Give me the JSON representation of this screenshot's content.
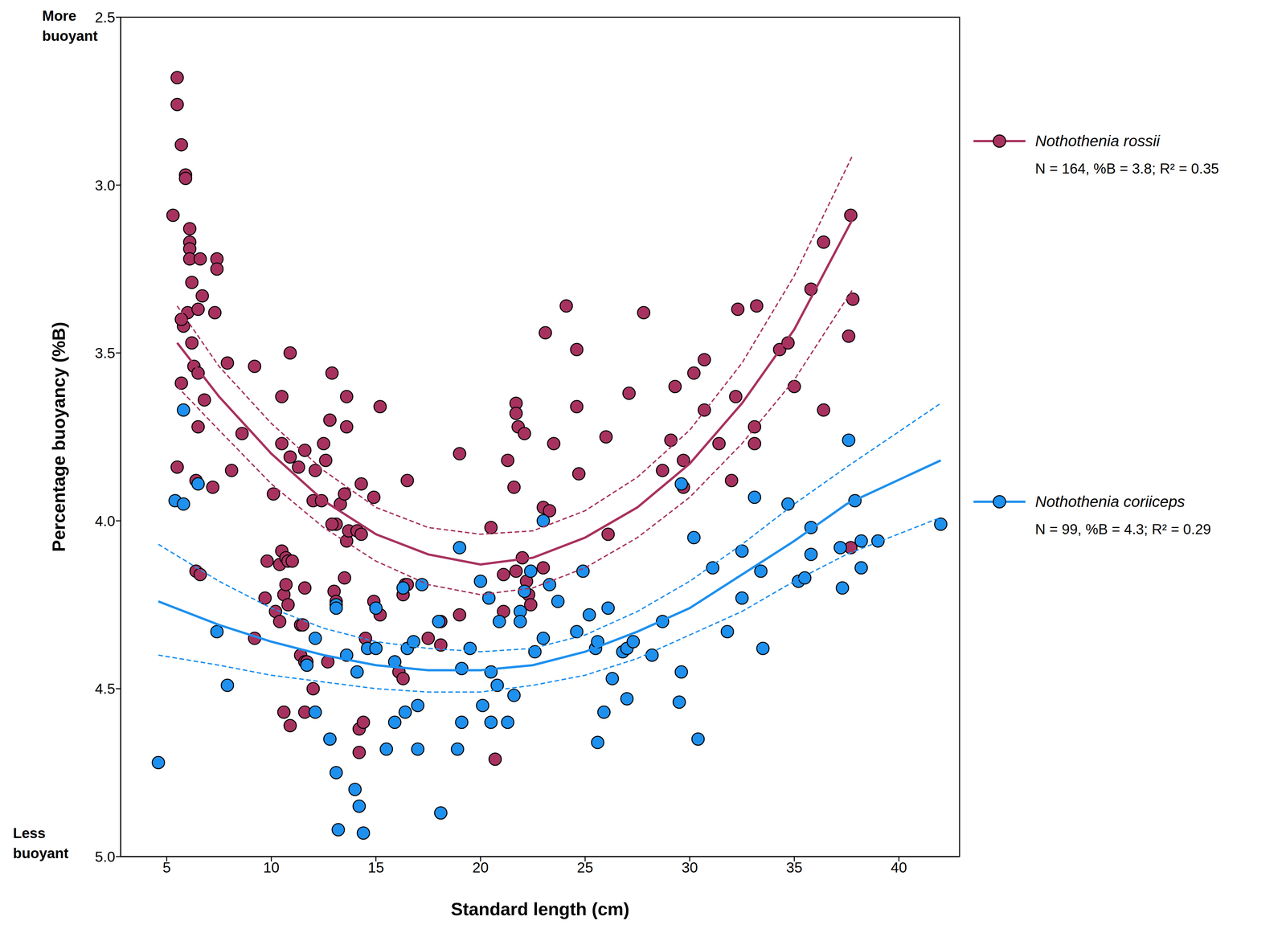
{
  "chart_data": {
    "type": "scatter",
    "x_label": "Standard length (cm)",
    "y_label": "Percentage buoyancy (%B)",
    "annotations": [
      "More buoyant",
      "Less buoyant"
    ],
    "legend": "right",
    "xlim": [
      2.8,
      42.9
    ],
    "xticks": [
      5,
      10,
      15,
      20,
      25,
      30,
      35,
      40
    ],
    "ylim": [
      2.5,
      5.0
    ],
    "yticks": [
      2.5,
      {
        "value": 3,
        "label": "3.0"
      },
      3.5,
      {
        "value": 4,
        "label": "4.0"
      },
      4.5,
      {
        "value": 5,
        "label": "5.0"
      }
    ],
    "series": [
      {
        "name": "Nothothenia rossii",
        "label": "N = 164, %B = 3.8; R² = 0.35",
        "color": "#a8325f",
        "marker": "circle",
        "x": [
          5.5,
          5.5,
          5.7,
          5.9,
          5.9,
          5.3,
          6.1,
          6.1,
          6.1,
          6.1,
          6.2,
          6.0,
          5.8,
          5.7,
          6.2,
          6.3,
          5.7,
          6.5,
          6.6,
          6.7,
          6.5,
          7.4,
          7.4,
          7.3,
          6.8,
          6.5,
          5.5,
          6.4,
          7.2,
          6.4,
          6.6,
          7.9,
          9.2,
          8.1,
          8.6,
          9.2,
          9.8,
          9.7,
          10.1,
          10.5,
          10.9,
          10.5,
          10.9,
          11.3,
          11.6,
          12.1,
          12.5,
          12.0,
          12.4,
          12.6,
          12.9,
          12.8,
          13.6,
          13.6,
          13.1,
          12.9,
          13.3,
          13.5,
          13.5,
          13.6,
          13.7,
          14.1,
          14.3,
          14.3,
          14.9,
          15.2,
          13.0,
          13.1,
          10.4,
          10.5,
          10.7,
          10.8,
          11.0,
          10.2,
          10.4,
          10.6,
          10.7,
          10.8,
          11.4,
          11.5,
          11.6,
          11.4,
          11.6,
          11.7,
          12.0,
          10.6,
          10.9,
          11.6,
          12.7,
          14.5,
          14.9,
          15.2,
          14.2,
          14.2,
          14.4,
          16.1,
          16.3,
          16.3,
          16.4,
          16.5,
          17.5,
          18.1,
          18.1,
          19.0,
          19.0,
          16.5,
          20.5,
          20.7,
          21.1,
          21.1,
          21.3,
          21.6,
          21.7,
          21.7,
          21.8,
          22.1,
          21.7,
          22.0,
          22.2,
          22.3,
          22.4,
          23.0,
          23.1,
          23.0,
          23.3,
          23.5,
          24.1,
          24.6,
          24.6,
          24.7,
          26.0,
          26.1,
          27.1,
          27.8,
          28.7,
          29.1,
          29.3,
          29.7,
          29.7,
          30.2,
          30.7,
          30.7,
          31.4,
          32.0,
          32.2,
          32.3,
          33.1,
          33.1,
          33.2,
          34.3,
          34.7,
          35.0,
          35.8,
          36.4,
          36.4,
          37.6,
          37.7,
          37.8,
          37.7
        ],
        "values": [
          2.68,
          2.76,
          2.88,
          2.97,
          2.98,
          3.09,
          3.13,
          3.17,
          3.19,
          3.22,
          3.29,
          3.38,
          3.42,
          3.4,
          3.47,
          3.54,
          3.59,
          3.56,
          3.22,
          3.33,
          3.37,
          3.22,
          3.25,
          3.38,
          3.64,
          3.72,
          3.84,
          3.88,
          3.9,
          4.15,
          4.16,
          3.53,
          3.54,
          3.85,
          3.74,
          4.35,
          4.12,
          4.23,
          3.92,
          3.63,
          3.5,
          3.77,
          3.81,
          3.84,
          3.79,
          3.85,
          3.77,
          3.94,
          3.94,
          3.82,
          3.56,
          3.7,
          3.72,
          3.63,
          4.01,
          4.01,
          3.95,
          3.92,
          4.17,
          4.06,
          4.03,
          4.03,
          4.04,
          3.89,
          3.93,
          3.66,
          4.21,
          4.24,
          4.13,
          4.09,
          4.11,
          4.12,
          4.12,
          4.27,
          4.3,
          4.22,
          4.19,
          4.25,
          4.31,
          4.31,
          4.2,
          4.4,
          4.42,
          4.42,
          4.5,
          4.57,
          4.61,
          4.57,
          4.42,
          4.35,
          4.24,
          4.28,
          4.69,
          4.62,
          4.6,
          4.45,
          4.47,
          4.22,
          4.19,
          4.19,
          4.35,
          4.3,
          4.37,
          4.28,
          3.8,
          3.88,
          4.02,
          4.71,
          4.16,
          4.27,
          3.82,
          3.9,
          3.65,
          3.68,
          3.72,
          3.74,
          4.15,
          4.11,
          4.18,
          4.22,
          4.25,
          4.14,
          3.44,
          3.96,
          3.97,
          3.77,
          3.36,
          3.49,
          3.66,
          3.86,
          3.75,
          4.04,
          3.62,
          3.38,
          3.85,
          3.76,
          3.6,
          3.82,
          3.9,
          3.56,
          3.52,
          3.67,
          3.77,
          3.88,
          3.63,
          3.37,
          3.72,
          3.77,
          3.36,
          3.49,
          3.47,
          3.6,
          3.31,
          3.17,
          3.67,
          3.45,
          3.09,
          3.34,
          4.08
        ],
        "fit": {
          "x": [
            5.5,
            7.5,
            10,
            12.5,
            15,
            17.5,
            20,
            22.5,
            25,
            27.5,
            30,
            32.5,
            35,
            37.8
          ],
          "values": [
            3.47,
            3.63,
            3.8,
            3.94,
            4.04,
            4.1,
            4.13,
            4.11,
            4.05,
            3.96,
            3.83,
            3.65,
            3.43,
            3.1
          ]
        },
        "ci_upper": {
          "x": [
            5.5,
            7.5,
            10,
            12.5,
            15,
            17.5,
            20,
            22.5,
            25,
            27.5,
            30,
            32.5,
            35,
            37.8
          ],
          "values": [
            3.36,
            3.54,
            3.71,
            3.85,
            3.96,
            4.02,
            4.04,
            4.03,
            3.97,
            3.87,
            3.73,
            3.53,
            3.27,
            2.91
          ]
        },
        "ci_lower": {
          "x": [
            5.5,
            7.5,
            10,
            12.5,
            15,
            17.5,
            20,
            22.5,
            25,
            27.5,
            30,
            32.5,
            35,
            37.8
          ],
          "values": [
            3.6,
            3.73,
            3.89,
            4.02,
            4.12,
            4.19,
            4.22,
            4.2,
            4.14,
            4.05,
            3.93,
            3.77,
            3.58,
            3.31
          ]
        }
      },
      {
        "name": "Nothothenia coriiceps",
        "label": "N = 99, %B = 4.3; R² = 0.29",
        "color": "#1e90ee",
        "marker": "circle",
        "x": [
          4.6,
          5.8,
          5.4,
          5.8,
          6.5,
          7.4,
          7.9,
          11.7,
          12.1,
          12.1,
          12.8,
          13.1,
          13.1,
          13.1,
          13.2,
          13.6,
          14.1,
          14.0,
          14.2,
          14.4,
          14.6,
          15.0,
          15.0,
          15.5,
          15.9,
          15.9,
          16.3,
          16.5,
          16.4,
          16.8,
          17.0,
          17.0,
          17.2,
          18.0,
          18.1,
          18.9,
          19.0,
          19.1,
          19.1,
          19.5,
          20.0,
          20.1,
          20.4,
          20.5,
          20.5,
          20.8,
          20.9,
          21.3,
          21.6,
          21.9,
          21.9,
          22.1,
          22.4,
          22.6,
          23.0,
          23.0,
          23.3,
          23.7,
          24.6,
          24.9,
          25.2,
          25.5,
          25.6,
          25.6,
          25.9,
          26.1,
          26.3,
          26.8,
          27.0,
          27.0,
          27.3,
          28.7,
          28.2,
          29.6,
          29.6,
          29.5,
          30.2,
          30.4,
          31.1,
          31.8,
          33.1,
          32.5,
          32.5,
          33.4,
          33.5,
          34.7,
          35.2,
          35.5,
          35.8,
          35.8,
          37.6,
          37.2,
          37.3,
          37.9,
          38.2,
          38.2,
          39.0,
          42.0
        ],
        "values": [
          4.72,
          3.67,
          3.94,
          3.95,
          3.89,
          4.33,
          4.49,
          4.43,
          4.35,
          4.57,
          4.65,
          4.25,
          4.26,
          4.75,
          4.92,
          4.4,
          4.45,
          4.8,
          4.85,
          4.93,
          4.38,
          4.38,
          4.26,
          4.68,
          4.42,
          4.6,
          4.2,
          4.38,
          4.57,
          4.36,
          4.55,
          4.68,
          4.19,
          4.3,
          4.87,
          4.68,
          4.08,
          4.44,
          4.6,
          4.38,
          4.18,
          4.55,
          4.23,
          4.45,
          4.6,
          4.49,
          4.3,
          4.6,
          4.52,
          4.27,
          4.3,
          4.21,
          4.15,
          4.39,
          4.0,
          4.35,
          4.19,
          4.24,
          4.33,
          4.15,
          4.28,
          4.38,
          4.66,
          4.36,
          4.57,
          4.26,
          4.47,
          4.39,
          4.38,
          4.53,
          4.36,
          4.3,
          4.4,
          3.89,
          4.45,
          4.54,
          4.05,
          4.65,
          4.14,
          4.33,
          3.93,
          4.09,
          4.23,
          4.15,
          4.38,
          3.95,
          4.18,
          4.17,
          4.02,
          4.1,
          3.76,
          4.08,
          4.2,
          3.94,
          4.06,
          4.14,
          4.06,
          4.01
        ],
        "fit": {
          "x": [
            4.6,
            7.5,
            10,
            12.5,
            15,
            17.5,
            20,
            22.5,
            25,
            27.5,
            30,
            32.5,
            35,
            37.5,
            42
          ],
          "values": [
            4.24,
            4.31,
            4.36,
            4.4,
            4.43,
            4.445,
            4.445,
            4.43,
            4.39,
            4.33,
            4.26,
            4.16,
            4.06,
            3.95,
            3.82
          ]
        },
        "ci_upper": {
          "x": [
            4.6,
            7.5,
            10,
            12.5,
            15,
            17.5,
            20,
            22.5,
            25,
            27.5,
            30,
            32.5,
            35,
            37.5,
            42
          ],
          "values": [
            4.07,
            4.18,
            4.26,
            4.32,
            4.36,
            4.38,
            4.39,
            4.38,
            4.34,
            4.27,
            4.18,
            4.07,
            3.95,
            3.84,
            3.65
          ]
        },
        "ci_lower": {
          "x": [
            4.6,
            7.5,
            10,
            12.5,
            15,
            17.5,
            20,
            22.5,
            25,
            27.5,
            30,
            32.5,
            35,
            37.5,
            42
          ],
          "values": [
            4.4,
            4.43,
            4.46,
            4.48,
            4.5,
            4.51,
            4.51,
            4.49,
            4.46,
            4.41,
            4.34,
            4.27,
            4.18,
            4.1,
            3.99
          ]
        }
      }
    ]
  }
}
